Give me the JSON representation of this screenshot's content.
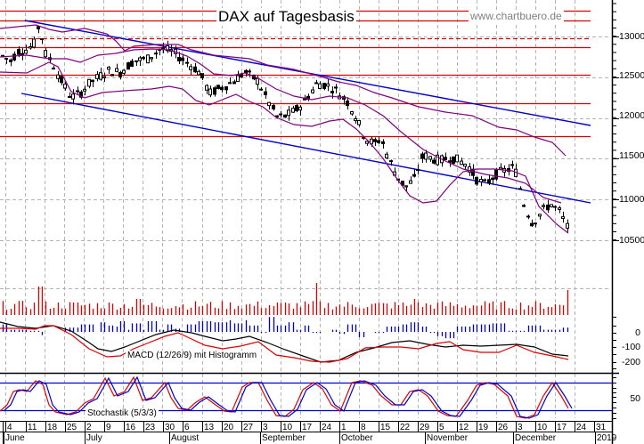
{
  "header": {
    "title": "DAX auf Tagesbasis",
    "website": "www.chartbuero.de"
  },
  "colors": {
    "candle_up_fill": "#ffffff",
    "candle_down_fill": "#000000",
    "bollinger": "#800080",
    "trendline": "#0000cc",
    "support_resistance": "#dd0000",
    "volume": "#dd0000",
    "macd_line": "#000000",
    "macd_signal": "#dd0000",
    "macd_histogram": "#0000cc",
    "stoch_k": "#dd0000",
    "stoch_d": "#0000cc",
    "grid": "#b4b4b4"
  },
  "panels": {
    "macd_label": "MACD (12/26/9) mit Histogramm",
    "stoch_label": "Stochastik (5/3/3)"
  },
  "price_axis": {
    "ticks": [
      "13000",
      "12500",
      "12000",
      "11500",
      "11000",
      "10500"
    ]
  },
  "macd_axis": {
    "ticks": [
      "0",
      "-100",
      "-200"
    ]
  },
  "stoch_axis": {
    "ticks": [
      "50"
    ]
  },
  "x_axis": {
    "days": [
      "4",
      "11",
      "18",
      "25",
      "2",
      "9",
      "16",
      "23",
      "30",
      "6",
      "13",
      "20",
      "27",
      "3",
      "10",
      "17",
      "24",
      "1",
      "8",
      "15",
      "22",
      "29",
      "5",
      "12",
      "19",
      "26",
      "3",
      "10",
      "17",
      "24",
      "31"
    ],
    "months": [
      "June",
      "July",
      "August",
      "September",
      "October",
      "November",
      "December",
      "2019"
    ]
  },
  "chart_data": {
    "type": "candlestick",
    "title": "DAX auf Tagesbasis",
    "xlabel": "",
    "ylabel": "",
    "ylim": [
      10300,
      13300
    ],
    "period": "June 2018 – December 2018 (daily)",
    "grid": true,
    "indicators": [
      "Bollinger Bands",
      "Trend channel",
      "Horizontal support/resistance",
      "Volume",
      "MACD (12/26/9) mit Histogramm",
      "Stochastik (5/3/3)"
    ],
    "horizontal_levels": [
      13300,
      13180,
      12850,
      12750,
      12500,
      12150,
      11750
    ],
    "horizontal_levels_dashed": [
      12850
    ],
    "trend_channel": {
      "upper": [
        {
          "date": "Jun 8",
          "value": 13200
        },
        {
          "date": "Dec 31",
          "value": 11880
        }
      ],
      "lower": [
        {
          "date": "Jun 4",
          "value": 12270
        },
        {
          "date": "Dec 31",
          "value": 10980
        }
      ]
    },
    "close_series_approx": {
      "x": [
        "Jun 4",
        "Jun 11",
        "Jun 18",
        "Jun 25",
        "Jul 2",
        "Jul 9",
        "Jul 16",
        "Jul 23",
        "Jul 30",
        "Aug 6",
        "Aug 13",
        "Aug 20",
        "Aug 27",
        "Sep 3",
        "Sep 10",
        "Sep 17",
        "Sep 24",
        "Oct 1",
        "Oct 8",
        "Oct 15",
        "Oct 22",
        "Oct 29",
        "Nov 5",
        "Nov 12",
        "Nov 19",
        "Nov 26",
        "Dec 3",
        "Dec 10",
        "Dec 17",
        "Dec 21"
      ],
      "values": [
        12770,
        12850,
        13050,
        12300,
        12450,
        12550,
        12600,
        12850,
        12700,
        12600,
        12250,
        12350,
        12400,
        12300,
        11950,
        12100,
        12450,
        12250,
        11800,
        11600,
        11350,
        11200,
        11550,
        11400,
        11200,
        11250,
        10800,
        10950,
        10800,
        10630
      ]
    },
    "macd_range": [
      -250,
      80
    ],
    "stoch_range": [
      0,
      100
    ],
    "stoch_levels": [
      80,
      20
    ]
  }
}
